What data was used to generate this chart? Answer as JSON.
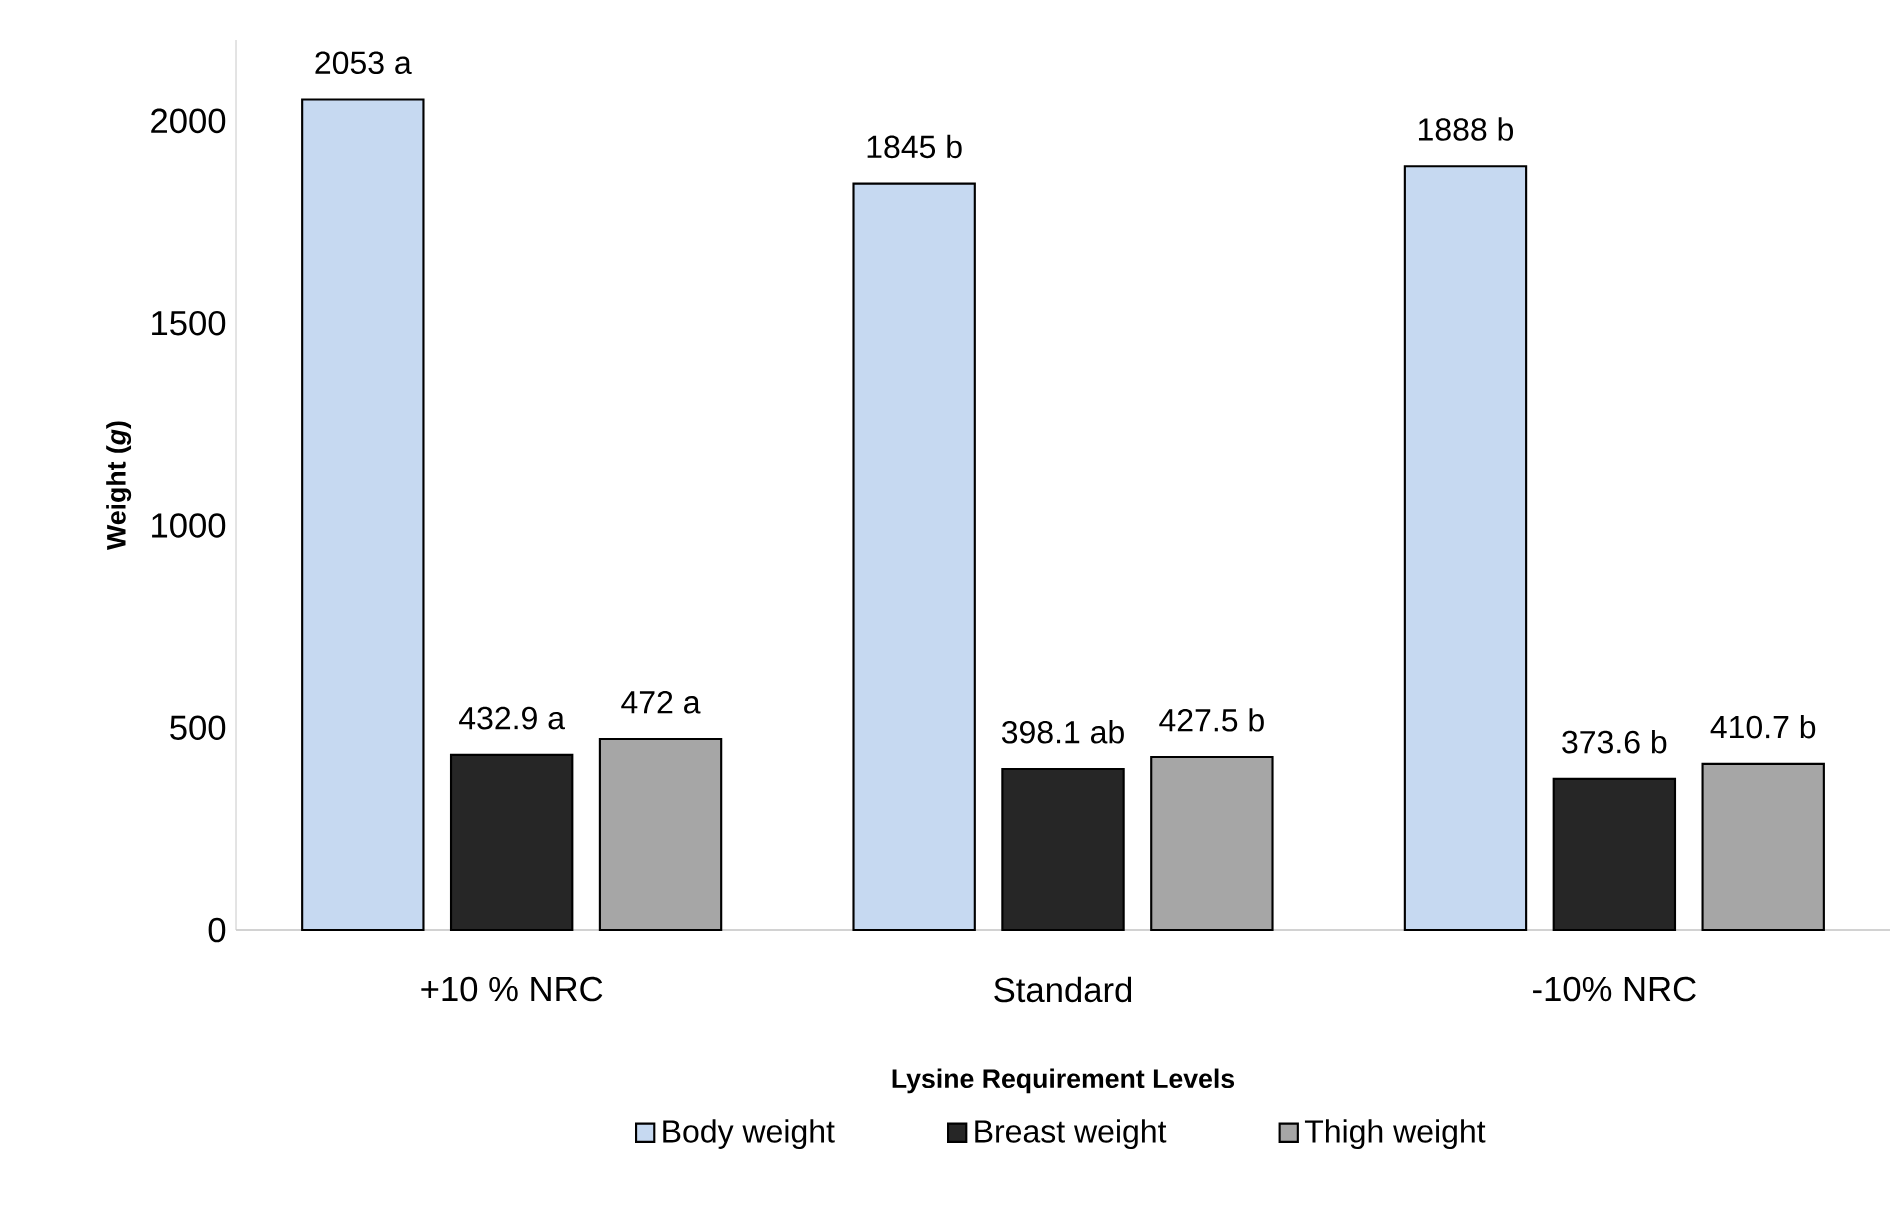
{
  "chart_data": {
    "type": "bar",
    "xlabel": "Lysine Requirement Levels",
    "ylabel": "Weight (*g*)",
    "categories": [
      "+10 % NRC",
      "Standard",
      "-10% NRC"
    ],
    "series": [
      {
        "name": "Body weight",
        "color": "#c6d9f1",
        "values": [
          2053,
          1845,
          1888
        ],
        "value_labels": [
          "2053 a",
          "1845 b",
          "1888 b"
        ]
      },
      {
        "name": "Breast weight",
        "color": "#262626",
        "values": [
          432.9,
          398.1,
          373.6
        ],
        "value_labels": [
          "432.9 a",
          "398.1 ab",
          "373.6 b"
        ]
      },
      {
        "name": "Thigh weight",
        "color": "#a6a6a6",
        "values": [
          472,
          427.5,
          410.7
        ],
        "value_labels": [
          "472 a",
          "427.5 b",
          "410.7 b"
        ]
      }
    ],
    "ylim": [
      0,
      2200
    ],
    "yticks": [
      0,
      500,
      1000,
      1500,
      2000
    ],
    "grid": false,
    "legend": "bottom"
  }
}
